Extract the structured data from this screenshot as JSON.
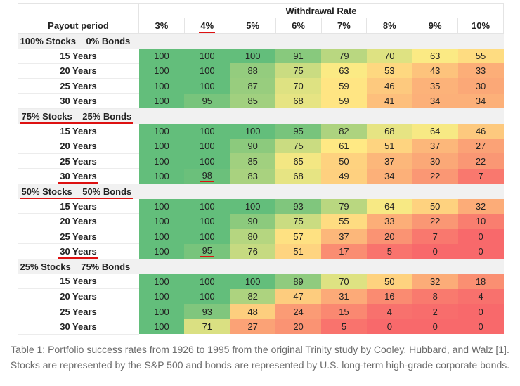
{
  "chart_data": {
    "type": "heatmap",
    "title": "Withdrawal Rate",
    "row_header": "Payout period",
    "columns": [
      "3%",
      "4%",
      "5%",
      "6%",
      "7%",
      "8%",
      "9%",
      "10%"
    ],
    "highlighted_columns": [
      "4%"
    ],
    "color_scale": {
      "high": "#63BE7B",
      "mid": "#FFEB84",
      "low": "#F8696B"
    },
    "groups": [
      {
        "label": "100% Stocks    0% Bonds",
        "underlined": false,
        "rows": [
          {
            "label": "15 Years",
            "values": [
              100,
              100,
              100,
              91,
              79,
              70,
              63,
              55
            ]
          },
          {
            "label": "20 Years",
            "values": [
              100,
              100,
              88,
              75,
              63,
              53,
              43,
              33
            ]
          },
          {
            "label": "25 Years",
            "values": [
              100,
              100,
              87,
              70,
              59,
              46,
              35,
              30
            ]
          },
          {
            "label": "30 Years",
            "values": [
              100,
              95,
              85,
              68,
              59,
              41,
              34,
              34
            ]
          }
        ]
      },
      {
        "label": "75% Stocks    25% Bonds",
        "underlined": true,
        "rows": [
          {
            "label": "15 Years",
            "values": [
              100,
              100,
              100,
              95,
              82,
              68,
              64,
              46
            ]
          },
          {
            "label": "20 Years",
            "values": [
              100,
              100,
              90,
              75,
              61,
              51,
              37,
              27
            ]
          },
          {
            "label": "25 Years",
            "values": [
              100,
              100,
              85,
              65,
              50,
              37,
              30,
              22
            ]
          },
          {
            "label": "30 Years",
            "values": [
              100,
              98,
              83,
              68,
              49,
              34,
              22,
              7
            ],
            "underlined": true,
            "highlight_col": 1
          }
        ]
      },
      {
        "label": "50% Stocks    50% Bonds",
        "underlined": true,
        "rows": [
          {
            "label": "15 Years",
            "values": [
              100,
              100,
              100,
              93,
              79,
              64,
              50,
              32
            ]
          },
          {
            "label": "20 Years",
            "values": [
              100,
              100,
              90,
              75,
              55,
              33,
              22,
              10
            ]
          },
          {
            "label": "25 Years",
            "values": [
              100,
              100,
              80,
              57,
              37,
              20,
              7,
              0
            ]
          },
          {
            "label": "30 Years",
            "values": [
              100,
              95,
              76,
              51,
              17,
              5,
              0,
              0
            ],
            "underlined": true,
            "highlight_col": 1
          }
        ]
      },
      {
        "label": "25% Stocks    75% Bonds",
        "underlined": false,
        "rows": [
          {
            "label": "15 Years",
            "values": [
              100,
              100,
              100,
              89,
              70,
              50,
              32,
              18
            ]
          },
          {
            "label": "20 Years",
            "values": [
              100,
              100,
              82,
              47,
              31,
              16,
              8,
              4
            ]
          },
          {
            "label": "25 Years",
            "values": [
              100,
              93,
              48,
              24,
              15,
              4,
              2,
              0
            ]
          },
          {
            "label": "30 Years",
            "values": [
              100,
              71,
              27,
              20,
              5,
              0,
              0,
              0
            ]
          }
        ]
      }
    ]
  },
  "caption": "Table 1: Portfolio success rates from 1926 to 1995 from the original Trinity study by Cooley, Hubbard, and Walz [1]. Stocks are represented by the S&P 500 and bonds are represented by U.S. long-term high-grade corporate bonds."
}
